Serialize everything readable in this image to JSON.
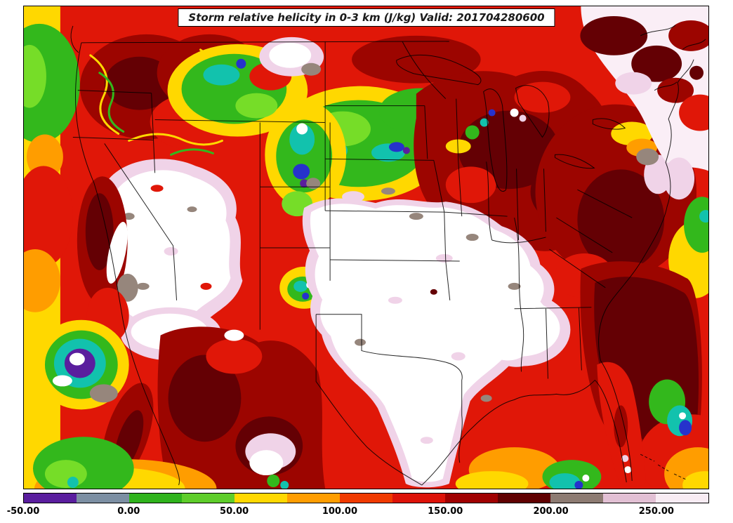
{
  "map": {
    "title": "Storm relative helicity in 0-3 km (J/kg) Valid: 201704280600"
  },
  "colorbar": {
    "range": [
      -50,
      275
    ],
    "levels": [
      -50,
      -25,
      0,
      25,
      50,
      75,
      100,
      125,
      150,
      175,
      200,
      225,
      250,
      275
    ],
    "colors": [
      "#5a1e9e",
      "#7c8fa3",
      "#2fb31c",
      "#5ecd2a",
      "#ffd800",
      "#ff9d00",
      "#f03a00",
      "#dd1208",
      "#a00000",
      "#600000",
      "#8d7b72",
      "#e2c0d4",
      "#f8ecf3"
    ],
    "ticks": [
      {
        "value": -50,
        "label": "-50.00"
      },
      {
        "value": 0,
        "label": "0.00"
      },
      {
        "value": 50,
        "label": "50.00"
      },
      {
        "value": 100,
        "label": "100.00"
      },
      {
        "value": 150,
        "label": "150.00"
      },
      {
        "value": 200,
        "label": "200.00"
      },
      {
        "value": 250,
        "label": "250.00"
      }
    ]
  },
  "chart_data": {
    "type": "heatmap",
    "title": "Storm relative helicity in 0-3 km (J/kg) Valid: 201704280600",
    "field": "Storm relative helicity 0-3 km",
    "units": "J/kg",
    "valid_time": "201704280600",
    "region": "Continental United States (model map view)",
    "colorbar_ticks": [
      "-50.00",
      "0.00",
      "50.00",
      "100.00",
      "150.00",
      "200.00",
      "250.00"
    ],
    "contour_levels": [
      -50,
      -25,
      0,
      25,
      50,
      75,
      100,
      125,
      150,
      175,
      200,
      225,
      250,
      275
    ],
    "palette": [
      "#5a1e9e",
      "#7c8fa3",
      "#2fb31c",
      "#5ecd2a",
      "#ffd800",
      "#ff9d00",
      "#f03a00",
      "#dd1208",
      "#a00000",
      "#600000",
      "#8d7b72",
      "#e2c0d4",
      "#f8ecf3"
    ],
    "legend_position": "bottom",
    "notable_features": [
      "Large off-scale (white, > 275 J/kg) maximum over the central Plains from Nebraska/Kansas through Oklahoma and Texas to the Gulf coast",
      "Second off-scale white maximum over the Great Basin (Nevada/Utah/Arizona)",
      "Broad 150-275 J/kg (dark red to maroon) over the Great Lakes, Ohio Valley, Appalachians and the Atlantic off the Southeast coast",
      "Closed local minimum below -50 J/kg (purple with white core ringed by cyan/green/yellow) over the Pacific off southern California",
      "Low values 0-75 J/kg (green/yellow bands) along the Pacific coast, northern Plains, lower-left Pacific and Gulf of Mexico patches"
    ]
  }
}
